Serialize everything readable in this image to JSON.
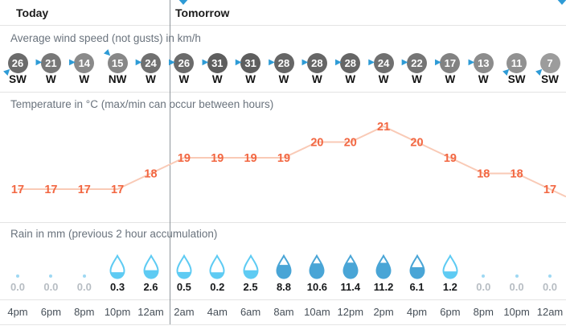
{
  "header": {
    "today": "Today",
    "tomorrow": "Tomorrow"
  },
  "sections": {
    "wind_label": "Average wind speed (not gusts) in km/h",
    "temperature_label": "Temperature in °C (max/min can occur between hours)",
    "rain_label": "Rain in mm (previous 2 hour accumulation)"
  },
  "times": [
    "4pm",
    "6pm",
    "8pm",
    "10pm",
    "12am",
    "2am",
    "4am",
    "6am",
    "8am",
    "10am",
    "12pm",
    "2pm",
    "4pm",
    "6pm",
    "8pm",
    "10pm",
    "12am"
  ],
  "day_divider_after_index": 4,
  "chart_data": [
    {
      "type": "line",
      "name": "wind_speed",
      "title": "Average wind speed (not gusts) in km/h",
      "unit": "km/h",
      "categories": [
        "4pm",
        "6pm",
        "8pm",
        "10pm",
        "12am",
        "2am",
        "4am",
        "6am",
        "8am",
        "10am",
        "12pm",
        "2pm",
        "4pm",
        "6pm",
        "8pm",
        "10pm",
        "12am"
      ],
      "values": [
        26,
        21,
        14,
        15,
        24,
        26,
        31,
        31,
        28,
        28,
        28,
        24,
        22,
        17,
        13,
        11,
        7
      ],
      "directions": [
        "SW",
        "W",
        "W",
        "NW",
        "W",
        "W",
        "W",
        "W",
        "W",
        "W",
        "W",
        "W",
        "W",
        "W",
        "W",
        "SW",
        "SW"
      ]
    },
    {
      "type": "line",
      "name": "temperature",
      "title": "Temperature in °C (max/min can occur between hours)",
      "unit": "°C",
      "categories": [
        "4pm",
        "6pm",
        "8pm",
        "10pm",
        "12am",
        "2am",
        "4am",
        "6am",
        "8am",
        "10am",
        "12pm",
        "2pm",
        "4pm",
        "6pm",
        "8pm",
        "10pm",
        "12am"
      ],
      "values": [
        17,
        17,
        17,
        17,
        18,
        19,
        19,
        19,
        19,
        20,
        20,
        21,
        20,
        19,
        18,
        18,
        17
      ],
      "ylim": [
        17,
        21
      ]
    },
    {
      "type": "bar",
      "name": "rain",
      "title": "Rain in mm (previous 2 hour accumulation)",
      "unit": "mm",
      "categories": [
        "4pm",
        "6pm",
        "8pm",
        "10pm",
        "12am",
        "2am",
        "4am",
        "6am",
        "8am",
        "10am",
        "12pm",
        "2pm",
        "4pm",
        "6pm",
        "8pm",
        "10pm",
        "12am"
      ],
      "values": [
        0.0,
        0.0,
        0.0,
        0.3,
        2.6,
        0.5,
        0.2,
        2.5,
        8.8,
        10.6,
        11.4,
        11.2,
        6.1,
        1.2,
        0.0,
        0.0,
        0.0
      ]
    }
  ],
  "colors": {
    "accent_blue": "#2e9bd6",
    "wind_arrow": "#2e9bd6",
    "temp_label": "#f26742",
    "temp_line": "#f9cab6",
    "rain_light": "#5ecbf3",
    "rain_dark": "#49a5d6",
    "rain_zero_text": "#b7bdc3",
    "rain_value_text": "#17191b"
  }
}
